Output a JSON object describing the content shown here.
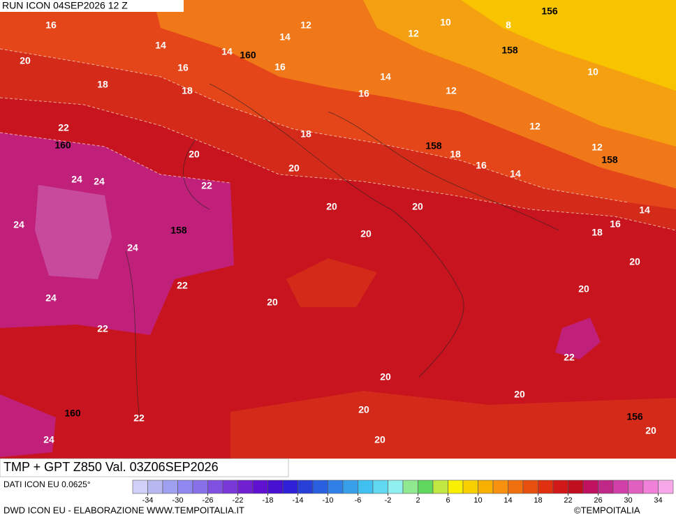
{
  "header": {
    "run": "RUN ICON 04SEP2026 12 Z"
  },
  "map": {
    "temperature_labels": [
      16,
      14,
      14,
      12,
      12,
      10,
      8,
      14,
      16,
      16,
      20,
      18,
      18,
      14,
      16,
      12,
      10,
      22,
      12,
      12,
      18,
      20,
      18,
      16,
      14,
      20,
      24,
      24,
      22,
      20,
      20,
      14,
      24,
      16,
      18,
      20,
      24,
      20,
      22,
      20,
      20,
      24,
      22,
      22,
      20,
      20,
      20,
      22,
      24,
      20,
      20
    ],
    "geopotential_labels": [
      156,
      158,
      160,
      160,
      158,
      158,
      158,
      160,
      156
    ]
  },
  "footer": {
    "title": "TMP + GPT Z850 Val. 03Z06SEP2026",
    "source": "DATI ICON EU 0.0625°",
    "credit": "DWD ICON EU - ELABORAZIONE WWW.TEMPOITALIA.IT",
    "copyright": "©TEMPOITALIA"
  },
  "colorbar": {
    "range": [
      -36,
      36
    ],
    "colors": [
      "#d0d0f8",
      "#b8b8f0",
      "#a0a0f0",
      "#9088f0",
      "#8870e8",
      "#8050e0",
      "#7838d8",
      "#7020d0",
      "#6010d0",
      "#4810d0",
      "#3020d8",
      "#2840d8",
      "#2860e0",
      "#3080e8",
      "#38a0e8",
      "#40c0f0",
      "#60d8f0",
      "#90f0f0",
      "#90e890",
      "#60d860",
      "#c0e840",
      "#f8f000",
      "#f8d000",
      "#f8b000",
      "#f89010",
      "#f07010",
      "#e85010",
      "#e03010",
      "#d01818",
      "#c01020",
      "#c01060",
      "#c02888",
      "#d040a8",
      "#e060c0",
      "#f080d8",
      "#f8a8e8"
    ],
    "ticks": [
      -34,
      -30,
      -26,
      -22,
      -18,
      -14,
      -10,
      -6,
      -2,
      2,
      6,
      10,
      14,
      18,
      22,
      26,
      30,
      34
    ]
  }
}
